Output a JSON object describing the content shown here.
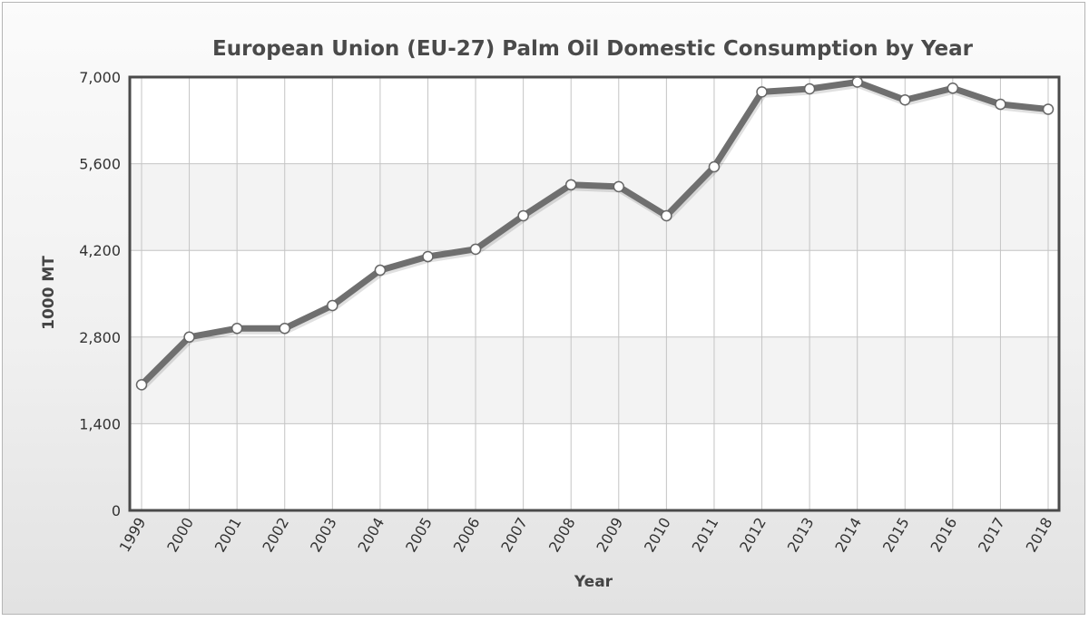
{
  "chart_data": {
    "type": "line",
    "title": "European Union (EU-27) Palm Oil Domestic Consumption by Year",
    "xlabel": "Year",
    "ylabel": "1000 MT",
    "categories": [
      "1999",
      "2000",
      "2001",
      "2002",
      "2003",
      "2004",
      "2005",
      "2006",
      "2007",
      "2008",
      "2009",
      "2010",
      "2011",
      "2012",
      "2013",
      "2014",
      "2015",
      "2016",
      "2017",
      "2018"
    ],
    "series": [
      {
        "values": [
          2030,
          2800,
          2940,
          2940,
          3310,
          3880,
          4100,
          4220,
          4760,
          5260,
          5230,
          4760,
          5550,
          6760,
          6810,
          6920,
          6630,
          6820,
          6560,
          6480
        ]
      }
    ],
    "y_ticks": [
      "0",
      "1,400",
      "2,800",
      "4,200",
      "5,600",
      "7,000"
    ],
    "ylim": [
      0,
      7000
    ],
    "grid": true,
    "colors": {
      "line": "#6f6f6f",
      "marker_fill": "#ffffff",
      "plot_band_light": "#ffffff",
      "plot_band_dark": "#f3f3f3",
      "grid": "#c4c4c4",
      "plot_border": "#4a4a4a"
    }
  }
}
